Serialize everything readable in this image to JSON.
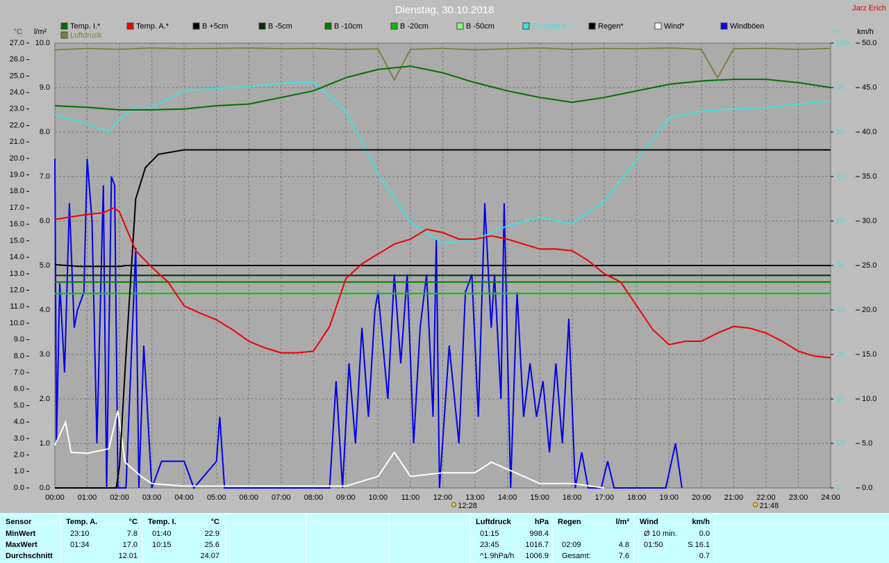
{
  "chart_data": {
    "type": "line",
    "title": "Dienstag, 30.10.2018",
    "author": "Jarz Erich",
    "axis_labels": {
      "y": "°C",
      "y4": "l/m²",
      "y2": "%",
      "y3": "km/h"
    },
    "annotations": [
      {
        "x": 12.47,
        "label": "12:28"
      },
      {
        "x": 21.8,
        "label": "21:48"
      }
    ],
    "grid": true,
    "xlim": [
      0,
      24
    ],
    "xticks": [
      {
        "value": 0,
        "label": "00:00"
      },
      {
        "value": 1,
        "label": "01:00"
      },
      {
        "value": 2,
        "label": "02:00"
      },
      {
        "value": 3,
        "label": "03:00"
      },
      {
        "value": 4,
        "label": "04:00"
      },
      {
        "value": 5,
        "label": "05:00"
      },
      {
        "value": 6,
        "label": "06:00"
      },
      {
        "value": 7,
        "label": "07:00"
      },
      {
        "value": 8,
        "label": "08:00"
      },
      {
        "value": 9,
        "label": "09:00"
      },
      {
        "value": 10,
        "label": "10:00"
      },
      {
        "value": 11,
        "label": "11:00"
      },
      {
        "value": 12,
        "label": "12:00"
      },
      {
        "value": 13,
        "label": "13:00"
      },
      {
        "value": 14,
        "label": "14:00"
      },
      {
        "value": 15,
        "label": "15:00"
      },
      {
        "value": 16,
        "label": "16:00"
      },
      {
        "value": 17,
        "label": "17:00"
      },
      {
        "value": 18,
        "label": "18:00"
      },
      {
        "value": 19,
        "label": "19:00"
      },
      {
        "value": 20,
        "label": "20:00"
      },
      {
        "value": 21,
        "label": "21:00"
      },
      {
        "value": 22,
        "label": "22:00"
      },
      {
        "value": 23,
        "label": "23:00"
      },
      {
        "value": 24,
        "label": "24:00"
      }
    ],
    "ylim": [
      0,
      27
    ],
    "yticks": [
      {
        "value": 0,
        "label": "0.0"
      },
      {
        "value": 1,
        "label": "1.0"
      },
      {
        "value": 2,
        "label": "2.0"
      },
      {
        "value": 3,
        "label": "3.0"
      },
      {
        "value": 4,
        "label": "4.0"
      },
      {
        "value": 5,
        "label": "5.0"
      },
      {
        "value": 6,
        "label": "6.0"
      },
      {
        "value": 7,
        "label": "7.0"
      },
      {
        "value": 8,
        "label": "8.0"
      },
      {
        "value": 9,
        "label": "9.0"
      },
      {
        "value": 10,
        "label": "10.0"
      },
      {
        "value": 11,
        "label": "11.0"
      },
      {
        "value": 12,
        "label": "12.0"
      },
      {
        "value": 13,
        "label": "13.0"
      },
      {
        "value": 14,
        "label": "14.0"
      },
      {
        "value": 15,
        "label": "15.0"
      },
      {
        "value": 16,
        "label": "16.0"
      },
      {
        "value": 17,
        "label": "17.0"
      },
      {
        "value": 18,
        "label": "18.0"
      },
      {
        "value": 19,
        "label": "19.0"
      },
      {
        "value": 20,
        "label": "20.0"
      },
      {
        "value": 21,
        "label": "21.0"
      },
      {
        "value": 22,
        "label": "22.0"
      },
      {
        "value": 23,
        "label": "23.0"
      },
      {
        "value": 24,
        "label": "24.0"
      },
      {
        "value": 25,
        "label": "25.0"
      },
      {
        "value": 26,
        "label": "26.0"
      },
      {
        "value": 27,
        "label": "27.0"
      }
    ],
    "y4lim": [
      0,
      10
    ],
    "y4ticks": [
      {
        "value": 0,
        "label": "0.0"
      },
      {
        "value": 1,
        "label": "1.0"
      },
      {
        "value": 2,
        "label": "2.0"
      },
      {
        "value": 3,
        "label": "3.0"
      },
      {
        "value": 4,
        "label": "4.0"
      },
      {
        "value": 5,
        "label": "5.0"
      },
      {
        "value": 6,
        "label": "6.0"
      },
      {
        "value": 7,
        "label": "7.0"
      },
      {
        "value": 8,
        "label": "8.0"
      },
      {
        "value": 9,
        "label": "9.0"
      },
      {
        "value": 10,
        "label": "10.0"
      }
    ],
    "y2lim": [
      0,
      100
    ],
    "y2ticks": [
      0,
      10,
      20,
      30,
      40,
      50,
      60,
      70,
      80,
      90,
      100
    ],
    "y3lim": [
      0,
      50
    ],
    "y3ticks": [
      {
        "value": 0,
        "label": "0.0"
      },
      {
        "value": 5,
        "label": "5.0"
      },
      {
        "value": 10,
        "label": "10.0"
      },
      {
        "value": 15,
        "label": "15.0"
      },
      {
        "value": 20,
        "label": "20.0"
      },
      {
        "value": 25,
        "label": "25.0"
      },
      {
        "value": 30,
        "label": "30.0"
      },
      {
        "value": 35,
        "label": "35.0"
      },
      {
        "value": 40,
        "label": "40.0"
      },
      {
        "value": 45,
        "label": "45.0"
      },
      {
        "value": 50,
        "label": "50.0"
      }
    ],
    "series": [
      {
        "name": "Temp. I.*",
        "color": "#007000",
        "axis": "y",
        "x": [
          0,
          1,
          2,
          3,
          4,
          5,
          6,
          7,
          8,
          9,
          10,
          11,
          12,
          13,
          14,
          15,
          16,
          17,
          18,
          19,
          20,
          21,
          22,
          23,
          24
        ],
        "values": [
          23.2,
          23.1,
          22.95,
          22.95,
          23.0,
          23.2,
          23.3,
          23.7,
          24.1,
          24.9,
          25.4,
          25.6,
          25.2,
          24.6,
          24.1,
          23.7,
          23.4,
          23.7,
          24.1,
          24.5,
          24.7,
          24.8,
          24.8,
          24.6,
          24.3
        ]
      },
      {
        "name": "Temp. A.*",
        "color": "#ee0000",
        "axis": "y",
        "x": [
          0,
          1,
          1.5,
          1.83,
          2,
          2.5,
          3,
          3.5,
          4,
          4.5,
          5,
          5.5,
          6,
          6.5,
          7,
          7.5,
          8,
          8.5,
          9,
          9.5,
          10,
          10.5,
          11,
          11.5,
          12,
          12.5,
          13,
          13.5,
          14,
          14.5,
          15,
          15.5,
          16,
          16.5,
          17,
          17.5,
          18,
          18.5,
          19,
          19.5,
          20,
          20.5,
          21,
          21.5,
          22,
          22.5,
          23,
          23.5,
          24
        ],
        "values": [
          16.3,
          16.6,
          16.7,
          17.0,
          16.75,
          14.4,
          13.4,
          12.5,
          11.05,
          10.6,
          10.2,
          9.6,
          8.9,
          8.5,
          8.2,
          8.2,
          8.3,
          9.8,
          12.7,
          13.6,
          14.2,
          14.8,
          15.1,
          15.7,
          15.5,
          15.1,
          15.1,
          15.3,
          15.1,
          14.8,
          14.5,
          14.5,
          14.4,
          13.8,
          13.0,
          12.5,
          11.05,
          9.6,
          8.7,
          8.9,
          8.9,
          9.4,
          9.8,
          9.7,
          9.4,
          8.9,
          8.3,
          8.0,
          7.9
        ]
      },
      {
        "name": "B +5cm",
        "color": "#000000",
        "axis": "y",
        "x": [
          0,
          0.75,
          2,
          2.2,
          24
        ],
        "values": [
          13.55,
          13.45,
          13.45,
          13.5,
          13.5
        ]
      },
      {
        "name": "B -5cm",
        "color": "#003000",
        "axis": "y",
        "x": [
          0,
          24
        ],
        "values": [
          12.9,
          12.9
        ]
      },
      {
        "name": "B -10cm",
        "color": "#008000",
        "axis": "y",
        "x": [
          0,
          24
        ],
        "values": [
          12.5,
          12.5
        ]
      },
      {
        "name": "B -20cm",
        "color": "#00c000",
        "axis": "y",
        "x": [
          0,
          24
        ],
        "values": [
          11.8,
          11.8
        ]
      },
      {
        "name": "B -50cm",
        "color": "#80ff80",
        "axis": "y",
        "x": [
          0,
          24
        ],
        "values": [
          11.8,
          11.8
        ]
      },
      {
        "name": "Feuchte A.*",
        "color": "#40e0e0",
        "axis": "y2",
        "x": [
          0,
          1,
          1.67,
          2,
          2.5,
          3,
          4,
          5,
          6,
          7,
          8,
          9,
          10,
          11,
          12,
          13,
          14,
          15,
          16,
          17,
          18,
          19,
          20,
          21,
          22,
          23,
          24
        ],
        "values": [
          83.9,
          81.9,
          80,
          83,
          85.5,
          85.5,
          89.4,
          89.8,
          90.2,
          91,
          91.3,
          84.7,
          70.6,
          59.7,
          55,
          55.8,
          58.9,
          60.8,
          59.4,
          64.4,
          73.8,
          83.1,
          84.7,
          85.2,
          85.5,
          86.3,
          87
        ]
      },
      {
        "name": "Regen*",
        "color": "#000000",
        "axis": "y4",
        "x": [
          0,
          1.9,
          2.0,
          2.2,
          2.5,
          2.8,
          3.2,
          4.0,
          24
        ],
        "values": [
          0,
          0,
          0.5,
          3,
          6.5,
          7.2,
          7.5,
          7.6,
          7.6
        ]
      },
      {
        "name": "Wind*",
        "color": "#ffffff",
        "axis": "y3",
        "x": [
          0,
          0.33,
          0.5,
          1,
          1.67,
          1.95,
          2.17,
          2.67,
          3,
          4,
          9,
          10,
          10.5,
          11,
          12,
          13,
          13.5,
          14,
          15,
          16,
          17
        ],
        "values": [
          4.8,
          7.4,
          4,
          3.9,
          4.4,
          8.7,
          2.9,
          1.3,
          0.5,
          0.2,
          0.2,
          1.3,
          4,
          1.3,
          1.7,
          1.7,
          2.9,
          2.1,
          0.5,
          0.5,
          0
        ]
      },
      {
        "name": "Windböen",
        "color": "#0000ee",
        "axis": "y3",
        "x": [
          0,
          0.05,
          0.15,
          0.3,
          0.45,
          0.6,
          0.7,
          0.9,
          1.0,
          1.15,
          1.3,
          1.5,
          1.6,
          1.75,
          1.85,
          1.95,
          2.2,
          2.5,
          2.6,
          2.75,
          3.0,
          3.3,
          4.0,
          4.3,
          5.0,
          5.1,
          5.25,
          8.5,
          8.7,
          8.9,
          9.1,
          9.3,
          9.5,
          9.7,
          9.9,
          10.0,
          10.3,
          10.5,
          10.7,
          10.9,
          11.1,
          11.3,
          11.5,
          11.7,
          11.8,
          11.9,
          12.2,
          12.5,
          12.7,
          12.9,
          13.1,
          13.3,
          13.5,
          13.6,
          13.8,
          13.9,
          14.1,
          14.3,
          14.5,
          14.7,
          14.9,
          15.1,
          15.3,
          15.5,
          15.7,
          15.9,
          16.1,
          16.3,
          16.5,
          16.9,
          17.1,
          17.3,
          18.9,
          19.2,
          19.4
        ],
        "values": [
          37,
          5,
          23,
          13,
          32,
          18,
          20,
          22,
          37,
          30,
          5,
          34,
          0,
          35,
          34,
          0,
          0,
          27,
          0,
          16,
          0,
          3,
          3,
          0,
          3,
          8,
          0,
          0,
          12,
          0,
          14,
          5,
          18,
          8,
          20,
          22,
          10,
          24,
          14,
          24,
          5,
          18,
          24,
          8,
          28,
          0,
          16,
          5,
          22,
          24,
          8,
          32,
          18,
          24,
          10,
          32,
          0,
          22,
          8,
          14,
          8,
          12,
          4,
          14,
          5,
          19,
          0,
          4,
          0,
          0,
          3,
          0,
          0,
          5,
          0
        ]
      },
      {
        "name": "Luftdruck",
        "color": "#808040",
        "axis": "y2",
        "x": [
          0,
          1,
          2,
          3,
          4,
          5,
          6,
          7,
          8,
          9,
          10,
          10.5,
          11,
          12,
          13,
          14,
          15,
          16,
          17,
          18,
          19,
          20,
          20.5,
          21,
          22,
          23,
          24
        ],
        "values": [
          98.5,
          98.8,
          98.6,
          98.9,
          98.7,
          98.8,
          98.9,
          98.7,
          98.8,
          98.6,
          98.7,
          91.7,
          98.6,
          98.8,
          98.5,
          98.7,
          98.9,
          98.6,
          98.8,
          98.7,
          98.9,
          98.6,
          92.2,
          98.7,
          98.8,
          98.6,
          98.8
        ]
      }
    ],
    "table": {
      "row_labels": [
        "Sensor",
        "MinWert",
        "MaxWert",
        "Durchschnitt"
      ],
      "blocks": [
        {
          "name": "Temp. A.",
          "unit": "°C",
          "min": [
            "23:10",
            "7.8"
          ],
          "max": [
            "01:34",
            "17.0"
          ],
          "avg": [
            "12.01"
          ]
        },
        {
          "name": "Temp. I.",
          "unit": "°C",
          "min": [
            "01:40",
            "22.9"
          ],
          "max": [
            "10:15",
            "25.6"
          ],
          "avg": [
            "24.07"
          ]
        },
        {
          "name": "Luftdruck",
          "unit": "hPa",
          "min": [
            "01:15",
            "998.4"
          ],
          "max": [
            "23:45",
            "1016.7"
          ],
          "avg": [
            "^1.9hPa/h",
            "1006.9"
          ]
        },
        {
          "name": "Regen",
          "unit": "l/m²",
          "max": [
            "02:09",
            "4.8"
          ],
          "avg": [
            "Gesamt:",
            "7.6"
          ]
        },
        {
          "name": "Wind",
          "unit": "km/h",
          "min": [
            "Ø 10 min.",
            "0.0"
          ],
          "max": [
            "01:50",
            "S 16.1"
          ],
          "avg": [
            "0.7"
          ]
        }
      ]
    }
  }
}
